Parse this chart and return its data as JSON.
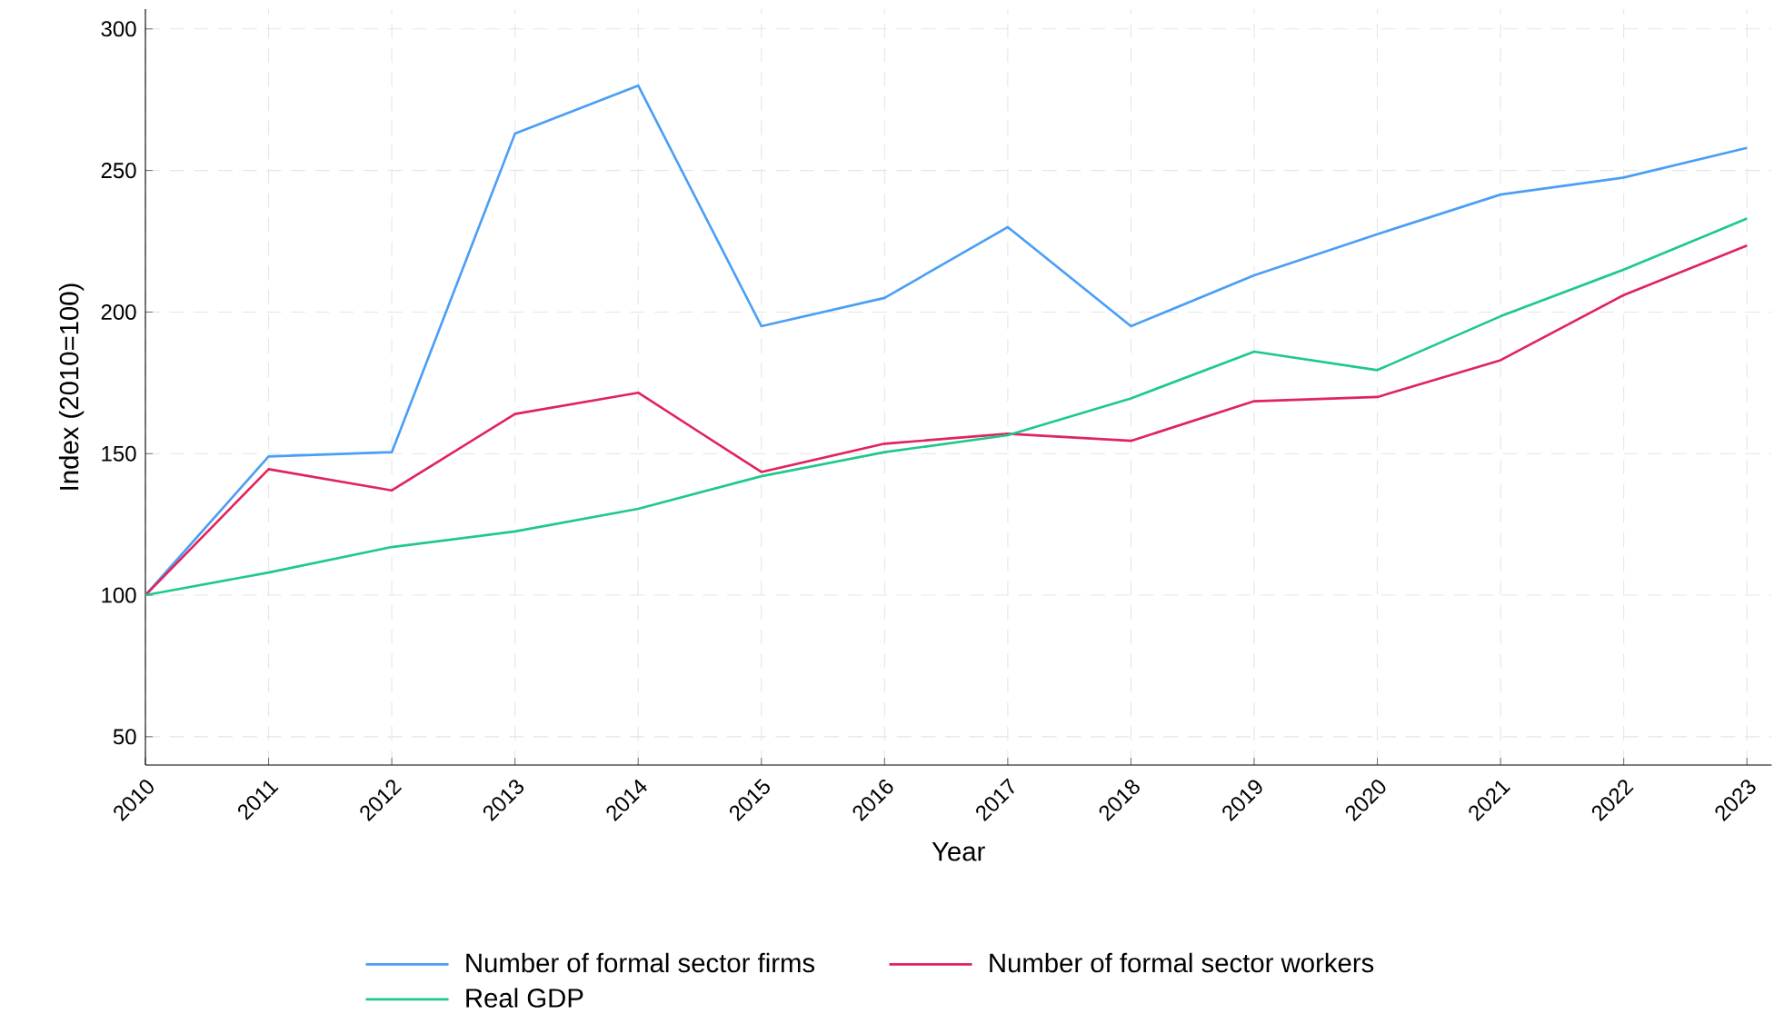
{
  "chart_data": {
    "type": "line",
    "xlabel": "Year",
    "ylabel": "Index (2010=100)",
    "x": [
      2010,
      2011,
      2012,
      2013,
      2014,
      2015,
      2016,
      2017,
      2018,
      2019,
      2020,
      2021,
      2022,
      2023
    ],
    "series": [
      {
        "name": "Number of formal sector firms",
        "color": "#4a9ff5",
        "values": [
          100,
          149,
          150.5,
          263,
          280,
          195,
          205,
          230,
          195,
          213,
          227.5,
          241.5,
          247.5,
          258
        ]
      },
      {
        "name": "Number of formal sector workers",
        "color": "#e0245e",
        "values": [
          100,
          144.5,
          137,
          164,
          171.5,
          143.5,
          153.5,
          157,
          154.5,
          168.5,
          170,
          183,
          206,
          223.5
        ]
      },
      {
        "name": "Real GDP",
        "color": "#1ec98b",
        "values": [
          100,
          108,
          117,
          122.5,
          130.5,
          142,
          150.5,
          156.5,
          169.5,
          186,
          179.5,
          198.5,
          215,
          233
        ]
      }
    ],
    "xlim": [
      2010,
      2023.2
    ],
    "ylim": [
      40,
      307
    ],
    "xticks": [
      2010,
      2011,
      2012,
      2013,
      2014,
      2015,
      2016,
      2017,
      2018,
      2019,
      2020,
      2021,
      2022,
      2023
    ],
    "yticks": [
      50,
      100,
      150,
      200,
      250,
      300
    ],
    "grid": true,
    "legend": "bottom",
    "marker": "none",
    "line_style": "solid"
  }
}
